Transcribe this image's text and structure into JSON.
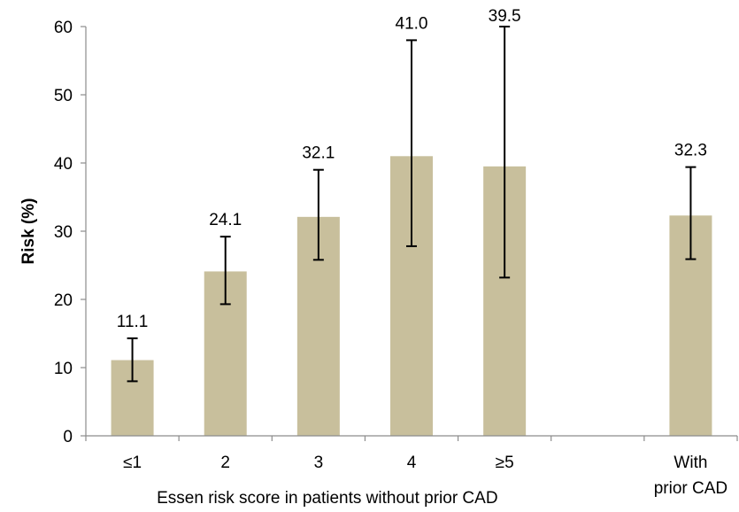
{
  "chart_data": {
    "type": "bar",
    "title": "",
    "xlabel": "Essen risk score in patients without prior CAD",
    "ylabel": "Risk (%)",
    "ylim": [
      0,
      60
    ],
    "yticks": [
      0,
      10,
      20,
      30,
      40,
      50,
      60
    ],
    "grid": false,
    "legend": "none",
    "categories": [
      [
        "≤1"
      ],
      [
        "2"
      ],
      [
        "3"
      ],
      [
        "4"
      ],
      [
        "≥5"
      ],
      [
        ""
      ],
      [
        "With",
        "prior CAD"
      ]
    ],
    "values": [
      11.1,
      24.1,
      32.1,
      41.0,
      39.5,
      null,
      32.3
    ],
    "data_labels": [
      "11.1",
      "24.1",
      "32.1",
      "41.0",
      "39.5",
      "",
      "32.3"
    ],
    "error_low": [
      8.0,
      19.3,
      25.8,
      27.8,
      23.2,
      null,
      25.9
    ],
    "error_high": [
      14.3,
      29.2,
      39.0,
      58.0,
      60.0,
      null,
      39.4
    ],
    "colors": {
      "bar": "#c8bf9c",
      "error_bar": "#000000",
      "axis": "#8c8c8c"
    }
  }
}
